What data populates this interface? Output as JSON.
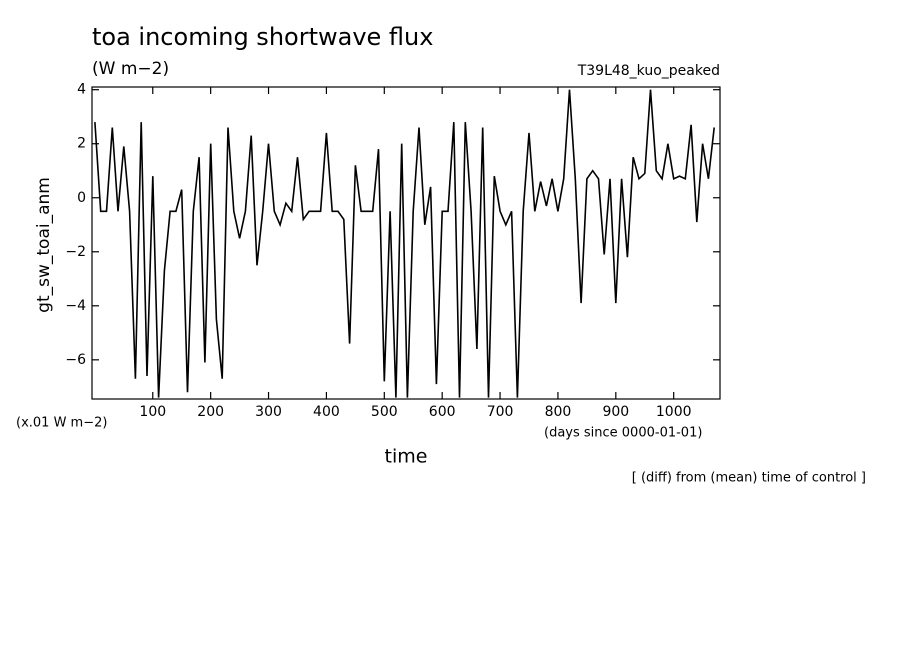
{
  "chart_data": {
    "type": "line",
    "title": "toa incoming shortwave flux",
    "units": "(W m−2)",
    "subtitle": "T39L48_kuo_peaked",
    "ylabel": "gt_sw_toai_anm",
    "yunits": "(x.01 W m−2)",
    "xunits": "(days since 0000-01-01)",
    "xlabel": "time",
    "note": "[ (diff) from (mean) time of control ]",
    "xlim": [
      -5,
      1080
    ],
    "ylim": [
      -7.45,
      4.1
    ],
    "xticks": [
      100,
      200,
      300,
      400,
      500,
      600,
      700,
      800,
      900,
      1000
    ],
    "yticks": [
      {
        "value": -6,
        "label": "−6"
      },
      {
        "value": -4,
        "label": "−4"
      },
      {
        "value": -2,
        "label": "−2"
      },
      0,
      2,
      4
    ],
    "x": [
      0,
      10,
      20,
      30,
      40,
      50,
      60,
      70,
      80,
      90,
      100,
      110,
      120,
      130,
      140,
      150,
      160,
      170,
      180,
      190,
      200,
      210,
      220,
      230,
      240,
      250,
      260,
      270,
      280,
      290,
      300,
      310,
      320,
      330,
      340,
      350,
      360,
      370,
      380,
      390,
      400,
      410,
      420,
      430,
      440,
      450,
      460,
      470,
      480,
      490,
      500,
      510,
      520,
      530,
      540,
      550,
      560,
      570,
      580,
      590,
      600,
      610,
      620,
      630,
      640,
      650,
      660,
      670,
      680,
      690,
      700,
      710,
      720,
      730,
      740,
      750,
      760,
      770,
      780,
      790,
      800,
      810,
      820,
      830,
      840,
      850,
      860,
      870,
      880,
      890,
      900,
      910,
      920,
      930,
      940,
      950,
      960,
      970,
      980,
      990,
      1000,
      1010,
      1020,
      1030,
      1040,
      1050,
      1060,
      1070
    ],
    "series": [
      {
        "name": "gt_sw_toai_anm",
        "color": "#000000",
        "values": [
          2.8,
          -0.5,
          -0.5,
          2.6,
          -0.5,
          1.9,
          -0.5,
          -6.7,
          2.8,
          -6.6,
          0.8,
          -7.4,
          -2.7,
          -0.5,
          -0.5,
          0.3,
          -7.2,
          -0.5,
          1.5,
          -6.1,
          2.0,
          -4.5,
          -6.7,
          2.6,
          -0.5,
          -1.5,
          -0.5,
          2.3,
          -2.5,
          -0.5,
          2.0,
          -0.5,
          -1.0,
          -0.2,
          -0.5,
          1.5,
          -0.8,
          -0.5,
          -0.5,
          -0.5,
          2.4,
          -0.5,
          -0.5,
          -0.8,
          -5.4,
          1.2,
          -0.5,
          -0.5,
          -0.5,
          1.8,
          -6.8,
          -0.5,
          -7.4,
          2.0,
          -7.4,
          -0.5,
          2.6,
          -1.0,
          0.4,
          -6.9,
          -0.5,
          -0.5,
          2.8,
          -7.4,
          2.8,
          -0.5,
          -5.6,
          2.6,
          -7.4,
          0.8,
          -0.5,
          -1.0,
          -0.5,
          -7.4,
          -0.5,
          2.4,
          -0.5,
          0.6,
          -0.3,
          0.7,
          -0.5,
          0.7,
          4.0,
          0.7,
          -3.9,
          0.7,
          1.0,
          0.7,
          -2.1,
          0.7,
          -3.9,
          0.7,
          -2.2,
          1.5,
          0.7,
          0.9,
          4.0,
          1.0,
          0.7,
          2.0,
          0.7,
          0.8,
          0.7,
          2.7,
          -0.9,
          2.0,
          0.7,
          2.6
        ]
      }
    ]
  }
}
